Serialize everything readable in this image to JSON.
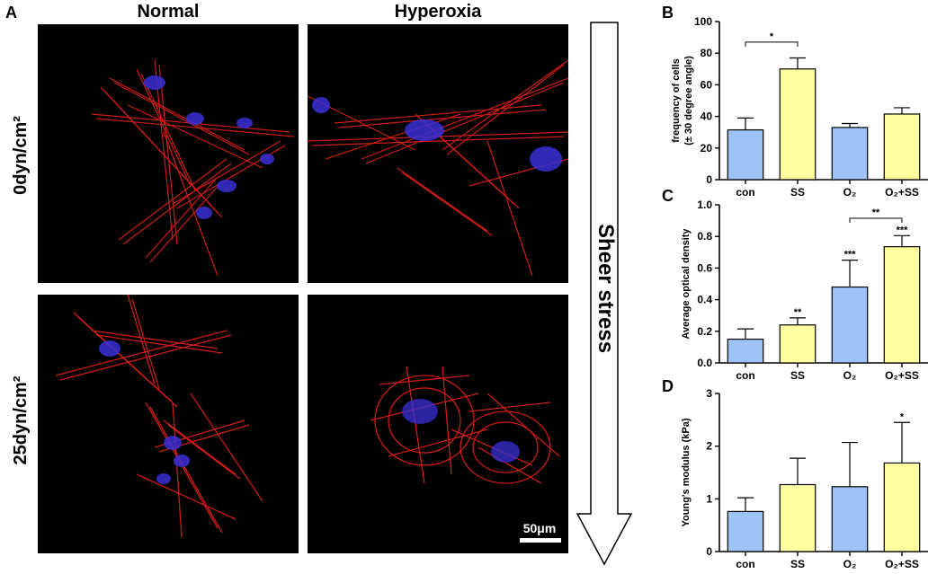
{
  "panel_a": {
    "label": "A",
    "col_headers": [
      "Normal",
      "Hyperoxia"
    ],
    "row_headers": [
      "0dyn/cm²",
      "25dyn/cm²"
    ],
    "scale_bar": "50μm",
    "arrow_label": "Sheer stress"
  },
  "chart_data": [
    {
      "panel": "B",
      "type": "bar",
      "categories": [
        "con",
        "SS",
        "O₂",
        "O₂+SS"
      ],
      "values": [
        31.5,
        70,
        33,
        41.5
      ],
      "errors": [
        7.5,
        7,
        2.5,
        4
      ],
      "colors": [
        "#9ec3f5",
        "#ffffa0",
        "#9ec3f5",
        "#ffffa0"
      ],
      "ylabel": "frequency of cells (± 30 degree angle)",
      "ylabel_lines": [
        "frequency of cells",
        "(± 30 degree angle)"
      ],
      "ylim": [
        0,
        100
      ],
      "yticks": [
        0,
        20,
        40,
        60,
        80,
        100
      ],
      "ytick_labels": [
        "0",
        "20",
        "40",
        "60",
        "80",
        "100"
      ],
      "annotations": [
        {
          "type": "bracket",
          "from": 0,
          "to": 1,
          "y": 87,
          "text": "*"
        }
      ],
      "star_labels": []
    },
    {
      "panel": "C",
      "type": "bar",
      "categories": [
        "con",
        "SS",
        "O₂",
        "O₂+SS"
      ],
      "values": [
        0.15,
        0.24,
        0.48,
        0.735
      ],
      "errors": [
        0.065,
        0.045,
        0.17,
        0.07
      ],
      "colors": [
        "#9ec3f5",
        "#ffffa0",
        "#9ec3f5",
        "#ffffa0"
      ],
      "ylabel": "Average optical density",
      "ylabel_lines": [
        "Average optical density"
      ],
      "ylim": [
        0,
        1.0
      ],
      "yticks": [
        0,
        0.2,
        0.4,
        0.6,
        0.8,
        1.0
      ],
      "ytick_labels": [
        "0.0",
        "0.2",
        "0.4",
        "0.6",
        "0.8",
        "1.0"
      ],
      "annotations": [
        {
          "type": "bracket",
          "from": 2,
          "to": 3,
          "y": 0.915,
          "text": "**"
        }
      ],
      "star_labels": [
        "",
        "**",
        "***",
        "***"
      ]
    },
    {
      "panel": "D",
      "type": "bar",
      "categories": [
        "con",
        "SS",
        "O₂",
        "O₂+SS"
      ],
      "values": [
        0.76,
        1.27,
        1.23,
        1.68
      ],
      "errors": [
        0.26,
        0.5,
        0.84,
        0.77
      ],
      "colors": [
        "#9ec3f5",
        "#ffffa0",
        "#9ec3f5",
        "#ffffa0"
      ],
      "ylabel": "Young's modulus (kPa)",
      "ylabel_lines": [
        "Young's modulus (kPa)"
      ],
      "ylim": [
        0,
        3
      ],
      "yticks": [
        0,
        1,
        2,
        3
      ],
      "ytick_labels": [
        "0",
        "1",
        "2",
        "3"
      ],
      "annotations": [],
      "star_labels": [
        "",
        "",
        "",
        "*"
      ]
    }
  ]
}
